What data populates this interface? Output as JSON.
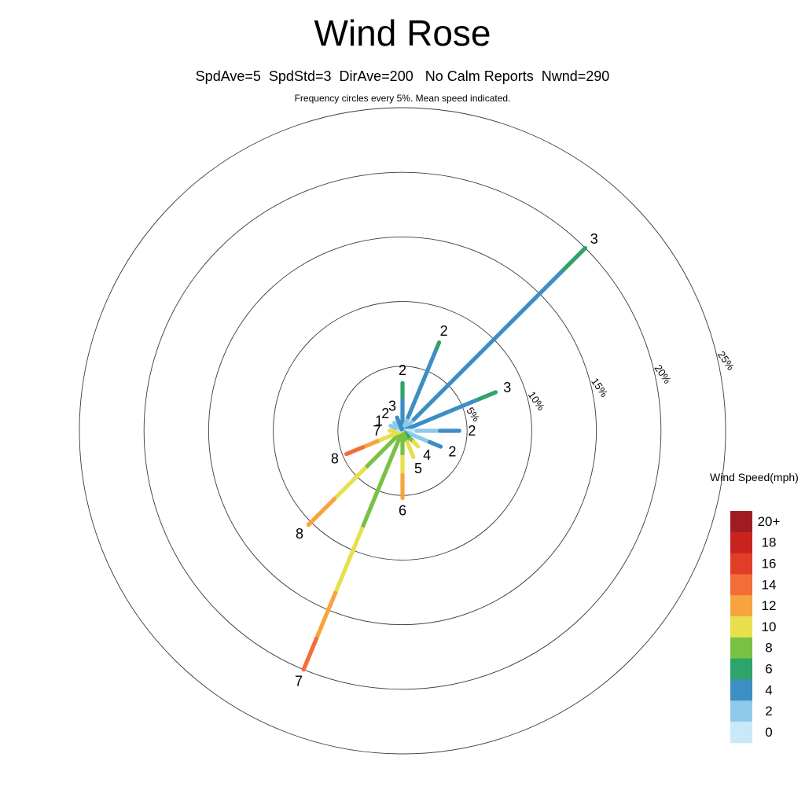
{
  "chart_data": {
    "type": "windrose",
    "title": "Wind Rose",
    "subtitle": "SpdAve=5  SpdStd=3  DirAve=200   No Calm Reports  Nwnd=290",
    "caption": "Frequency circles every 5%. Mean speed indicated.",
    "frequency_rings_pct": [
      5,
      10,
      15,
      20,
      25
    ],
    "ring_labels": [
      "5%",
      "10%",
      "15%",
      "20%",
      "25%"
    ],
    "ring_label_azimuth_deg": 78,
    "ring_label_rotation_deg": 55,
    "center_color": "#c9e9f9",
    "legend": {
      "title": "Wind Speed(mph)",
      "bins": [
        {
          "speed": 20,
          "label": "20+",
          "color": "#9f1d22"
        },
        {
          "speed": 18,
          "label": "18",
          "color": "#c9231f"
        },
        {
          "speed": 16,
          "label": "16",
          "color": "#e23d27"
        },
        {
          "speed": 14,
          "label": "14",
          "color": "#f26d38"
        },
        {
          "speed": 12,
          "label": "12",
          "color": "#f8a43e"
        },
        {
          "speed": 10,
          "label": "10",
          "color": "#e7e04e"
        },
        {
          "speed": 8,
          "label": "8",
          "color": "#79c143"
        },
        {
          "speed": 6,
          "label": "6",
          "color": "#2ea36a"
        },
        {
          "speed": 4,
          "label": "4",
          "color": "#3d8ec4"
        },
        {
          "speed": 2,
          "label": "2",
          "color": "#8fc9e9"
        },
        {
          "speed": 0,
          "label": "0",
          "color": "#c9e9f9"
        }
      ]
    },
    "petals": [
      {
        "dir": "N",
        "azimuth_deg": 0,
        "freq_pct": 3.7,
        "mean_speed": 2,
        "segments": [
          {
            "speed": 4,
            "frac": 0.7
          },
          {
            "speed": 6,
            "frac": 0.3
          }
        ]
      },
      {
        "dir": "NNE",
        "azimuth_deg": 22.5,
        "freq_pct": 7.4,
        "mean_speed": 2,
        "segments": [
          {
            "speed": 2,
            "frac": 0.12
          },
          {
            "speed": 4,
            "frac": 0.82
          },
          {
            "speed": 6,
            "frac": 0.06
          }
        ]
      },
      {
        "dir": "NE",
        "azimuth_deg": 45,
        "freq_pct": 20.0,
        "mean_speed": 3,
        "segments": [
          {
            "speed": 2,
            "frac": 0.05
          },
          {
            "speed": 4,
            "frac": 0.83
          },
          {
            "speed": 6,
            "frac": 0.12
          }
        ]
      },
      {
        "dir": "ENE",
        "azimuth_deg": 67.5,
        "freq_pct": 7.8,
        "mean_speed": 3,
        "segments": [
          {
            "speed": 4,
            "frac": 0.82
          },
          {
            "speed": 6,
            "frac": 0.18
          }
        ]
      },
      {
        "dir": "E",
        "azimuth_deg": 90,
        "freq_pct": 4.4,
        "mean_speed": 2,
        "segments": [
          {
            "speed": 0,
            "frac": 0.2
          },
          {
            "speed": 2,
            "frac": 0.45
          },
          {
            "speed": 4,
            "frac": 0.35
          }
        ]
      },
      {
        "dir": "ESE",
        "azimuth_deg": 112.5,
        "freq_pct": 3.2,
        "mean_speed": 2,
        "segments": [
          {
            "speed": 2,
            "frac": 0.7
          },
          {
            "speed": 4,
            "frac": 0.3
          }
        ]
      },
      {
        "dir": "SE",
        "azimuth_deg": 135,
        "freq_pct": 1.7,
        "mean_speed": 4,
        "segments": [
          {
            "speed": 6,
            "frac": 0.4
          },
          {
            "speed": 8,
            "frac": 0.3
          },
          {
            "speed": 10,
            "frac": 0.3
          }
        ]
      },
      {
        "dir": "SSE",
        "azimuth_deg": 157.5,
        "freq_pct": 2.2,
        "mean_speed": 5,
        "segments": [
          {
            "speed": 8,
            "frac": 0.4
          },
          {
            "speed": 10,
            "frac": 0.6
          }
        ]
      },
      {
        "dir": "S",
        "azimuth_deg": 180,
        "freq_pct": 5.2,
        "mean_speed": 6,
        "segments": [
          {
            "speed": 8,
            "frac": 0.35
          },
          {
            "speed": 10,
            "frac": 0.3
          },
          {
            "speed": 12,
            "frac": 0.35
          }
        ]
      },
      {
        "dir": "SSW",
        "azimuth_deg": 202.5,
        "freq_pct": 20.0,
        "mean_speed": 7,
        "segments": [
          {
            "speed": 8,
            "frac": 0.4
          },
          {
            "speed": 10,
            "frac": 0.27
          },
          {
            "speed": 12,
            "frac": 0.2
          },
          {
            "speed": 14,
            "frac": 0.13
          }
        ]
      },
      {
        "dir": "SW",
        "azimuth_deg": 225,
        "freq_pct": 10.3,
        "mean_speed": 8,
        "segments": [
          {
            "speed": 8,
            "frac": 0.38
          },
          {
            "speed": 10,
            "frac": 0.34
          },
          {
            "speed": 12,
            "frac": 0.28
          }
        ]
      },
      {
        "dir": "WSW",
        "azimuth_deg": 247.5,
        "freq_pct": 4.7,
        "mean_speed": 8,
        "segments": [
          {
            "speed": 10,
            "frac": 0.4
          },
          {
            "speed": 12,
            "frac": 0.3
          },
          {
            "speed": 14,
            "frac": 0.3
          }
        ]
      },
      {
        "dir": "W",
        "azimuth_deg": 270,
        "freq_pct": 1.0,
        "mean_speed": 7,
        "segments": [
          {
            "speed": 10,
            "frac": 1.0
          }
        ]
      },
      {
        "dir": "WNW",
        "azimuth_deg": 292.5,
        "freq_pct": 1.0,
        "mean_speed": 1,
        "segments": [
          {
            "speed": 0,
            "frac": 0.5
          },
          {
            "speed": 2,
            "frac": 0.5
          }
        ]
      },
      {
        "dir": "NW",
        "azimuth_deg": 315,
        "freq_pct": 0.9,
        "mean_speed": 2,
        "segments": [
          {
            "speed": 2,
            "frac": 1.0
          }
        ]
      },
      {
        "dir": "NNW",
        "azimuth_deg": 337.5,
        "freq_pct": 1.1,
        "mean_speed": 3,
        "segments": [
          {
            "speed": 4,
            "frac": 1.0
          }
        ]
      }
    ]
  }
}
